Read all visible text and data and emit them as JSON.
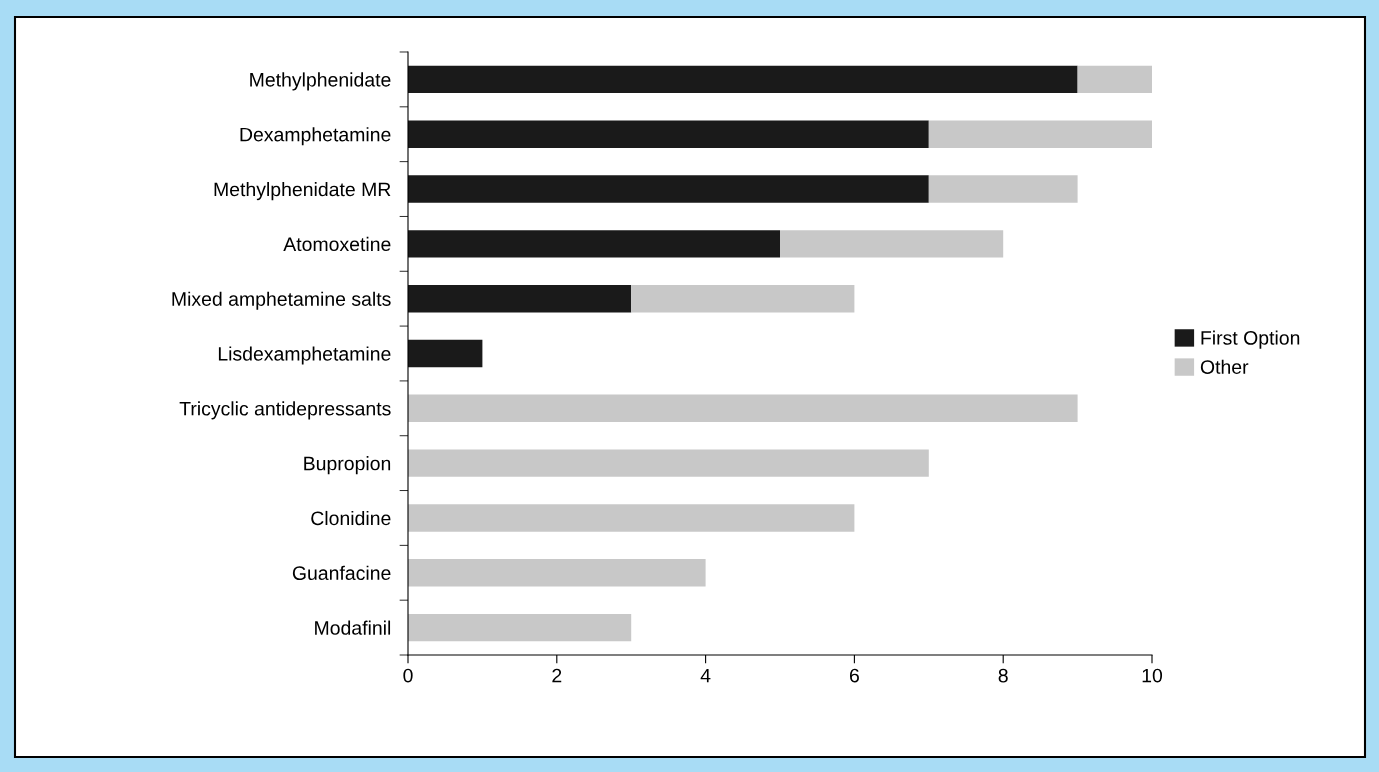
{
  "chart_data": {
    "type": "bar",
    "orientation": "horizontal",
    "stacked": true,
    "categories": [
      "Methylphenidate",
      "Dexamphetamine",
      "Methylphenidate MR",
      "Atomoxetine",
      "Mixed amphetamine salts",
      "Lisdexamphetamine",
      "Tricyclic antidepressants",
      "Bupropion",
      "Clonidine",
      "Guanfacine",
      "Modafinil"
    ],
    "series": [
      {
        "name": "First Option",
        "color": "#1a1a1a",
        "values": [
          9,
          7,
          7,
          5,
          3,
          1,
          0,
          0,
          0,
          0,
          0
        ]
      },
      {
        "name": "Other",
        "color": "#c8c8c8",
        "values": [
          1,
          3,
          2,
          3,
          3,
          0,
          9,
          7,
          6,
          4,
          3
        ]
      }
    ],
    "xlim": [
      0,
      10
    ],
    "xticks": [
      0,
      2,
      4,
      6,
      8,
      10
    ],
    "grid": false,
    "legend": "right"
  }
}
